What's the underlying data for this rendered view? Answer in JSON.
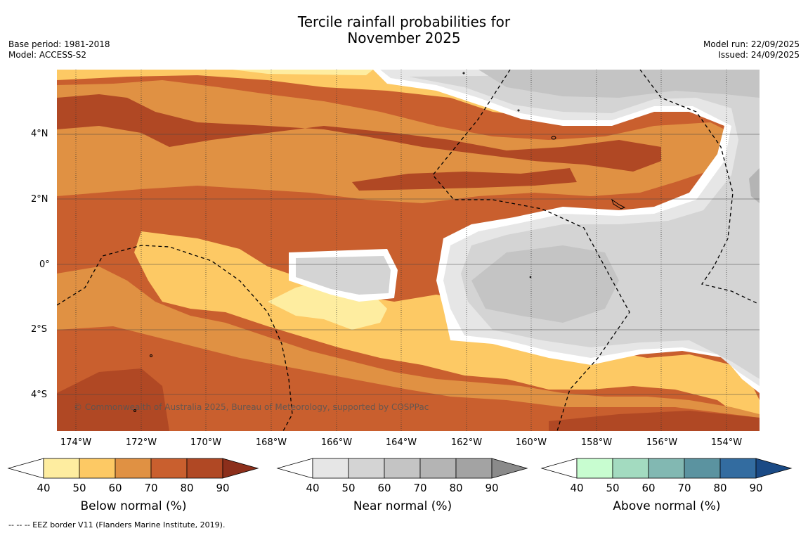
{
  "title_line1": "Tercile rainfall probabilities for",
  "title_line2": "November 2025",
  "base_period": "Base period: 1981-2018",
  "model": "Model: ACCESS-S2",
  "model_run": "Model run: 22/09/2025",
  "issued": "Issued: 24/09/2025",
  "copyright": "© Commonwealth of Australia 2025, Bureau of Meteorology, supported by COSPPac",
  "footer": "--  --  -- EEZ border V11 (Flanders Marine Institute, 2019).",
  "lat_labels": [
    "4°N",
    "2°N",
    "0°",
    "2°S",
    "4°S"
  ],
  "lon_labels": [
    "174°W",
    "172°W",
    "170°W",
    "168°W",
    "166°W",
    "164°W",
    "162°W",
    "160°W",
    "158°W",
    "156°W",
    "154°W"
  ],
  "colorbars": [
    {
      "title": "Below normal (%)",
      "ticks": [
        "40",
        "50",
        "60",
        "70",
        "80",
        "90"
      ],
      "colors": [
        "#ffffff",
        "#feeda0",
        "#fdc964",
        "#e09143",
        "#c95f2e",
        "#b04824",
        "#8c2f1b"
      ]
    },
    {
      "title": "Near normal (%)",
      "ticks": [
        "40",
        "50",
        "60",
        "70",
        "80",
        "90"
      ],
      "colors": [
        "#ffffff",
        "#e6e6e6",
        "#d4d4d4",
        "#c4c4c4",
        "#b4b4b4",
        "#a3a3a3",
        "#8a8a8a"
      ]
    },
    {
      "title": "Above normal (%)",
      "ticks": [
        "40",
        "50",
        "60",
        "70",
        "80",
        "90"
      ],
      "colors": [
        "#ffffff",
        "#c8fdd0",
        "#a3dbc0",
        "#82b8b2",
        "#5b93a0",
        "#336ca0",
        "#1a4a85"
      ]
    }
  ]
}
